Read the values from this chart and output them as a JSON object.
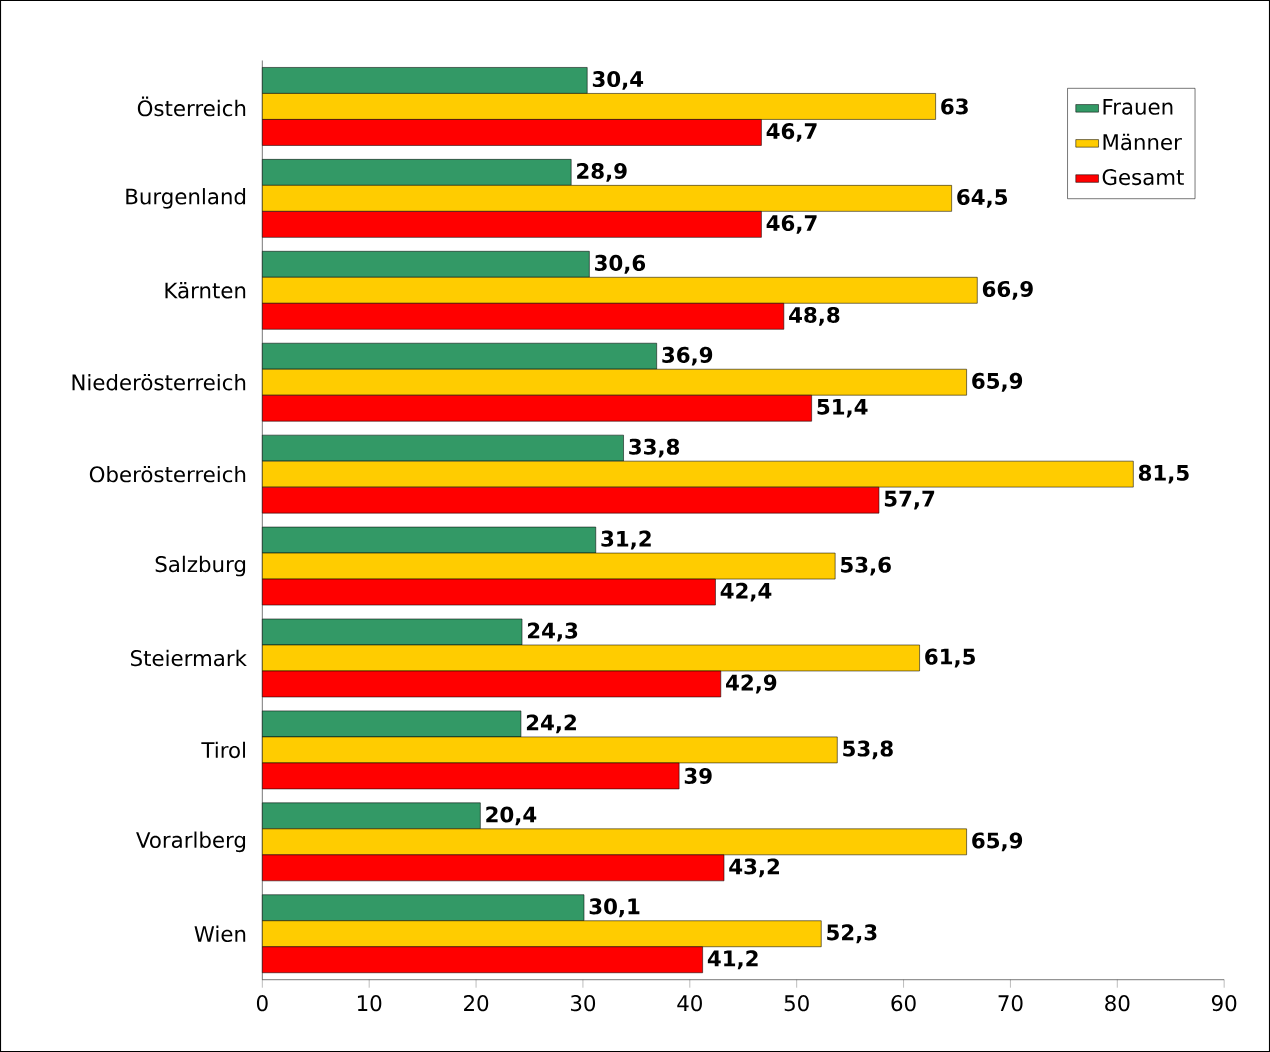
{
  "chart_data": {
    "type": "bar",
    "orientation": "horizontal",
    "categories": [
      "Österreich",
      "Burgenland",
      "Kärnten",
      "Niederösterreich",
      "Oberösterreich",
      "Salzburg",
      "Steiermark",
      "Tirol",
      "Vorarlberg",
      "Wien"
    ],
    "series": [
      {
        "name": "Frauen",
        "color": "#339966",
        "values": [
          30.4,
          28.9,
          30.6,
          36.9,
          33.8,
          31.2,
          24.3,
          24.2,
          20.4,
          30.1
        ],
        "value_labels": [
          "30,4",
          "28,9",
          "30,6",
          "36,9",
          "33,8",
          "31,2",
          "24,3",
          "24,2",
          "20,4",
          "30,1"
        ]
      },
      {
        "name": "Männer",
        "color": "#ffcc00",
        "values": [
          63,
          64.5,
          66.9,
          65.9,
          81.5,
          53.6,
          61.5,
          53.8,
          65.9,
          52.3
        ],
        "value_labels": [
          "63",
          "64,5",
          "66,9",
          "65,9",
          "81,5",
          "53,6",
          "61,5",
          "53,8",
          "65,9",
          "52,3"
        ]
      },
      {
        "name": "Gesamt",
        "color": "#ff0000",
        "values": [
          46.7,
          46.7,
          48.8,
          51.4,
          57.7,
          42.4,
          42.9,
          39,
          43.2,
          41.2
        ],
        "value_labels": [
          "46,7",
          "46,7",
          "48,8",
          "51,4",
          "57,7",
          "42,4",
          "42,9",
          "39",
          "43,2",
          "41,2"
        ]
      }
    ],
    "xlim": [
      0,
      90
    ],
    "xticks": [
      0,
      10,
      20,
      30,
      40,
      50,
      60,
      70,
      80,
      90
    ],
    "legend": "top right"
  }
}
